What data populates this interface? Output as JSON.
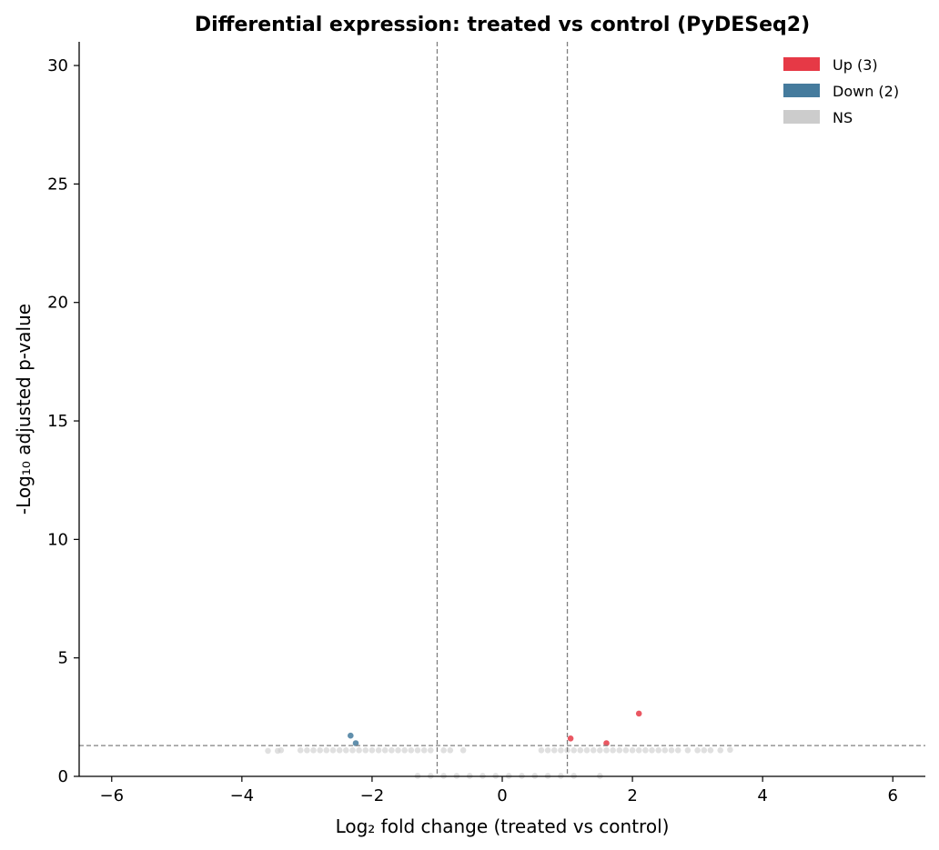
{
  "chart_data": {
    "type": "scatter",
    "title": "Differential expression: treated vs control (PyDESeq2)",
    "xlabel": "Log₂ fold change (treated vs control)",
    "ylabel": "-Log₁₀ adjusted p-value",
    "xlim": [
      -6.5,
      6.5
    ],
    "ylim": [
      0,
      31
    ],
    "xticks": [
      -6,
      -4,
      -2,
      0,
      2,
      4,
      6
    ],
    "xtick_labels": [
      "−6",
      "−4",
      "−2",
      "0",
      "2",
      "4",
      "6"
    ],
    "yticks": [
      0,
      5,
      10,
      15,
      20,
      25,
      30
    ],
    "ytick_labels": [
      "0",
      "5",
      "10",
      "15",
      "20",
      "25",
      "30"
    ],
    "thresholds": {
      "log2fc": [
        -1,
        1
      ],
      "neg_log10_padj": 1.3
    },
    "legend_position": "top-right",
    "grid": false,
    "series": [
      {
        "name": "Up (3)",
        "color": "#e63946",
        "points": [
          [
            1.05,
            1.6
          ],
          [
            1.6,
            1.4
          ],
          [
            2.1,
            2.65
          ]
        ]
      },
      {
        "name": "Down (2)",
        "color": "#457b9d",
        "points": [
          [
            -2.33,
            1.72
          ],
          [
            -2.25,
            1.4
          ]
        ]
      },
      {
        "name": "NS",
        "color": "#cccccc",
        "points": [
          [
            -3.6,
            1.08
          ],
          [
            -3.45,
            1.08
          ],
          [
            -3.4,
            1.1
          ],
          [
            -3.1,
            1.1
          ],
          [
            -3.0,
            1.1
          ],
          [
            -2.9,
            1.1
          ],
          [
            -2.8,
            1.1
          ],
          [
            -2.7,
            1.1
          ],
          [
            -2.6,
            1.1
          ],
          [
            -2.5,
            1.1
          ],
          [
            -2.4,
            1.1
          ],
          [
            -2.3,
            1.1
          ],
          [
            -2.2,
            1.1
          ],
          [
            -2.1,
            1.1
          ],
          [
            -2.0,
            1.1
          ],
          [
            -1.9,
            1.1
          ],
          [
            -1.8,
            1.1
          ],
          [
            -1.7,
            1.1
          ],
          [
            -1.6,
            1.1
          ],
          [
            -1.5,
            1.1
          ],
          [
            -1.4,
            1.1
          ],
          [
            -1.3,
            1.1
          ],
          [
            -1.2,
            1.1
          ],
          [
            -1.1,
            1.1
          ],
          [
            -0.9,
            1.1
          ],
          [
            -0.8,
            1.1
          ],
          [
            -0.6,
            1.1
          ],
          [
            0.6,
            1.1
          ],
          [
            0.7,
            1.1
          ],
          [
            0.8,
            1.1
          ],
          [
            0.9,
            1.1
          ],
          [
            1.0,
            1.1
          ],
          [
            1.1,
            1.1
          ],
          [
            1.2,
            1.1
          ],
          [
            1.3,
            1.1
          ],
          [
            1.4,
            1.1
          ],
          [
            1.5,
            1.1
          ],
          [
            1.6,
            1.1
          ],
          [
            1.7,
            1.1
          ],
          [
            1.8,
            1.1
          ],
          [
            1.9,
            1.1
          ],
          [
            2.0,
            1.1
          ],
          [
            2.1,
            1.1
          ],
          [
            2.2,
            1.1
          ],
          [
            2.3,
            1.1
          ],
          [
            2.4,
            1.1
          ],
          [
            2.5,
            1.1
          ],
          [
            2.6,
            1.1
          ],
          [
            2.7,
            1.1
          ],
          [
            2.85,
            1.1
          ],
          [
            3.0,
            1.1
          ],
          [
            3.1,
            1.1
          ],
          [
            3.2,
            1.1
          ],
          [
            3.35,
            1.1
          ],
          [
            3.5,
            1.12
          ],
          [
            -1.3,
            0.02
          ],
          [
            -1.1,
            0.02
          ],
          [
            -0.9,
            0.02
          ],
          [
            -0.7,
            0.02
          ],
          [
            -0.5,
            0.02
          ],
          [
            -0.3,
            0.02
          ],
          [
            -0.1,
            0.02
          ],
          [
            0.1,
            0.02
          ],
          [
            0.3,
            0.02
          ],
          [
            0.5,
            0.02
          ],
          [
            0.7,
            0.02
          ],
          [
            0.9,
            0.02
          ],
          [
            1.1,
            0.02
          ],
          [
            1.5,
            0.02
          ]
        ]
      }
    ]
  }
}
